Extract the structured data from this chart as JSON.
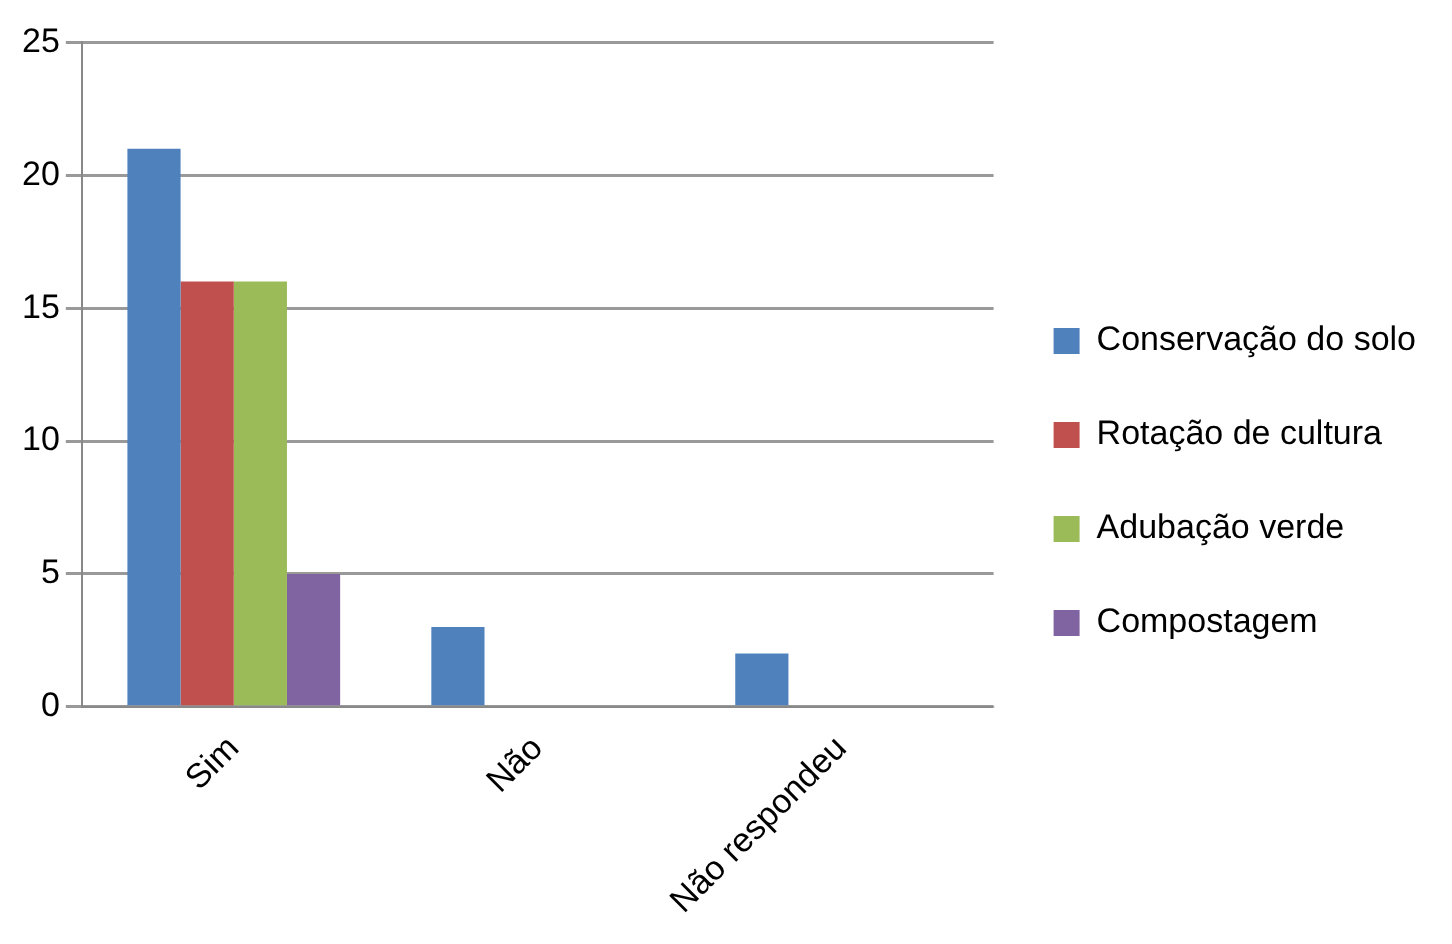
{
  "chart_data": {
    "type": "bar",
    "categories": [
      "Sim",
      "Não",
      "Não respondeu"
    ],
    "series": [
      {
        "name": "Conservação do solo",
        "color": "#4f81bd",
        "values": [
          21,
          3,
          2
        ]
      },
      {
        "name": "Rotação de cultura",
        "color": "#c0504d",
        "values": [
          16,
          0,
          0
        ]
      },
      {
        "name": "Adubação verde",
        "color": "#9bbb59",
        "values": [
          16,
          0,
          0
        ]
      },
      {
        "name": "Compostagem",
        "color": "#8064a2",
        "values": [
          5,
          0,
          0
        ]
      }
    ],
    "ylim": [
      0,
      25
    ],
    "yticks": [
      0,
      5,
      10,
      15,
      20,
      25
    ],
    "grid": "y",
    "legend": "right"
  }
}
